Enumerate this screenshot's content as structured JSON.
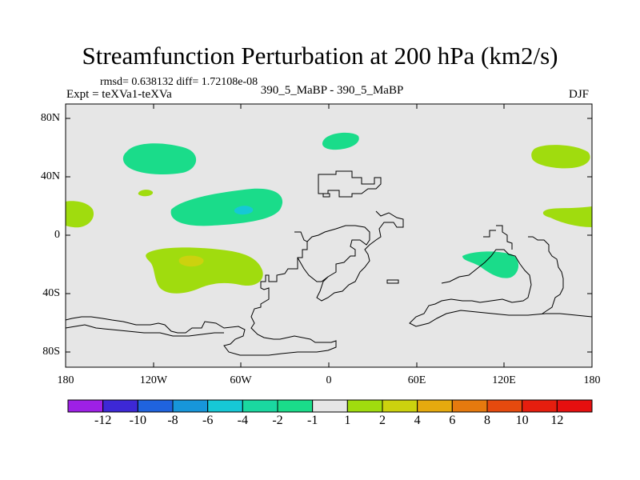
{
  "figure": {
    "title": "Streamfunction Perturbation at 200 hPa (km2/s)",
    "stats": "rmsd= 0.638132 diff= 1.72108e-08",
    "experiment": "Expt = teXVa1-teXVa",
    "cases": "390_5_MaBP - 390_5_MaBP",
    "season": "DJF"
  },
  "map": {
    "projection": "cylindrical-equidistant",
    "lon_range": [
      -180,
      180
    ],
    "lat_range": [
      -90,
      90
    ],
    "background_color": "#e6e6e6",
    "coastline_color": "#000000"
  },
  "chart_data": {
    "type": "heatmap",
    "title": "Streamfunction Perturbation at 200 hPa (km2/s)",
    "x_ticks": [
      "180",
      "120W",
      "60W",
      "0",
      "60E",
      "120E",
      "180"
    ],
    "y_ticks": [
      "80N",
      "40N",
      "0",
      "40S",
      "80S"
    ],
    "colorbar": {
      "labels": [
        "-12",
        "-10",
        "-8",
        "-6",
        "-4",
        "-2",
        "-1",
        "1",
        "2",
        "4",
        "6",
        "8",
        "10",
        "12"
      ],
      "colors": [
        "#9e20e6",
        "#3d28d6",
        "#1f63de",
        "#1796da",
        "#16c8d6",
        "#1ad8a0",
        "#1adc8a",
        "#e6e6e6",
        "#a0dc0e",
        "#ccd20e",
        "#e6aa0e",
        "#e67a0e",
        "#e64a0e",
        "#e61e0e",
        "#e60f0f"
      ]
    },
    "features": [
      {
        "name": "anomaly-nh-pacific",
        "value_class": "-2..-1",
        "color": "#1adc8a",
        "lon": -128,
        "lat": 52
      },
      {
        "name": "anomaly-tropical-pacific",
        "value_class": "-2..-1",
        "color": "#1adc8a",
        "lon": -65,
        "lat": 17
      },
      {
        "name": "anomaly-tropical-pacific-core",
        "value_class": "-4..-2",
        "color": "#16c8d6",
        "lon": -62,
        "lat": 18
      },
      {
        "name": "anomaly-north-atlantic",
        "value_class": "-2..-1",
        "color": "#1adc8a",
        "lon": 8,
        "lat": 65
      },
      {
        "name": "anomaly-indonesia",
        "value_class": "-2..-1",
        "color": "#1adc8a",
        "lon": 113,
        "lat": -20
      },
      {
        "name": "anomaly-south-pacific",
        "value_class": "1..2",
        "color": "#a0dc0e",
        "lon": -100,
        "lat": -25
      },
      {
        "name": "anomaly-south-pacific-core",
        "value_class": "2..4",
        "color": "#ccd20e",
        "lon": -97,
        "lat": -17
      },
      {
        "name": "anomaly-small-pacific",
        "value_class": "1..2",
        "color": "#a0dc0e",
        "lon": -137,
        "lat": 30
      },
      {
        "name": "anomaly-dateline-east",
        "value_class": "1..2",
        "color": "#a0dc0e",
        "lon": -177,
        "lat": 15
      },
      {
        "name": "anomaly-nw-pacific",
        "value_class": "1..2",
        "color": "#a0dc0e",
        "lon": 160,
        "lat": 55
      },
      {
        "name": "anomaly-w-pacific-tropics",
        "value_class": "1..2",
        "color": "#a0dc0e",
        "lon": 155,
        "lat": 15
      }
    ]
  }
}
